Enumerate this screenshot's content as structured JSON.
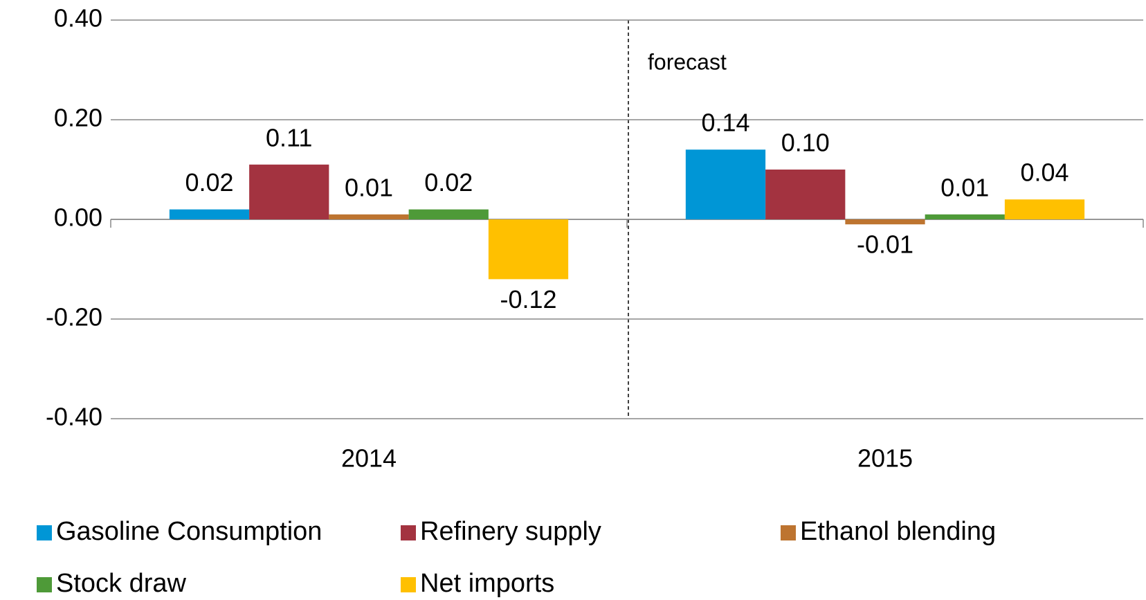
{
  "chart_data": {
    "type": "bar",
    "categories": [
      "2014",
      "2015"
    ],
    "series": [
      {
        "name": "Gasoline Consumption",
        "color": "#0096d6",
        "values": [
          0.02,
          0.14
        ],
        "value_labels": [
          "0.02",
          "0.14"
        ]
      },
      {
        "name": "Refinery supply",
        "color": "#a33340",
        "values": [
          0.11,
          0.1
        ],
        "value_labels": [
          "0.11",
          "0.10"
        ]
      },
      {
        "name": "Ethanol blending",
        "color": "#bd7430",
        "values": [
          0.01,
          -0.01
        ],
        "value_labels": [
          "0.01",
          "-0.01"
        ]
      },
      {
        "name": "Stock draw",
        "color": "#4e9a38",
        "values": [
          0.02,
          0.01
        ],
        "value_labels": [
          "0.02",
          "0.01"
        ]
      },
      {
        "name": "Net imports",
        "color": "#ffc000",
        "values": [
          -0.12,
          0.04
        ],
        "value_labels": [
          "-0.12",
          "0.04"
        ]
      }
    ],
    "ylim": [
      -0.4,
      0.4
    ],
    "yticks": [
      {
        "value": -0.4,
        "label": "-0.40"
      },
      {
        "value": -0.2,
        "label": "-0.20"
      },
      {
        "value": 0,
        "label": "0.00"
      },
      {
        "value": 0.2,
        "label": "0.20"
      },
      {
        "value": 0.4,
        "label": "0.40"
      }
    ],
    "grid": true,
    "annotations": [
      {
        "text": "forecast"
      }
    ],
    "legend": "bottom"
  }
}
